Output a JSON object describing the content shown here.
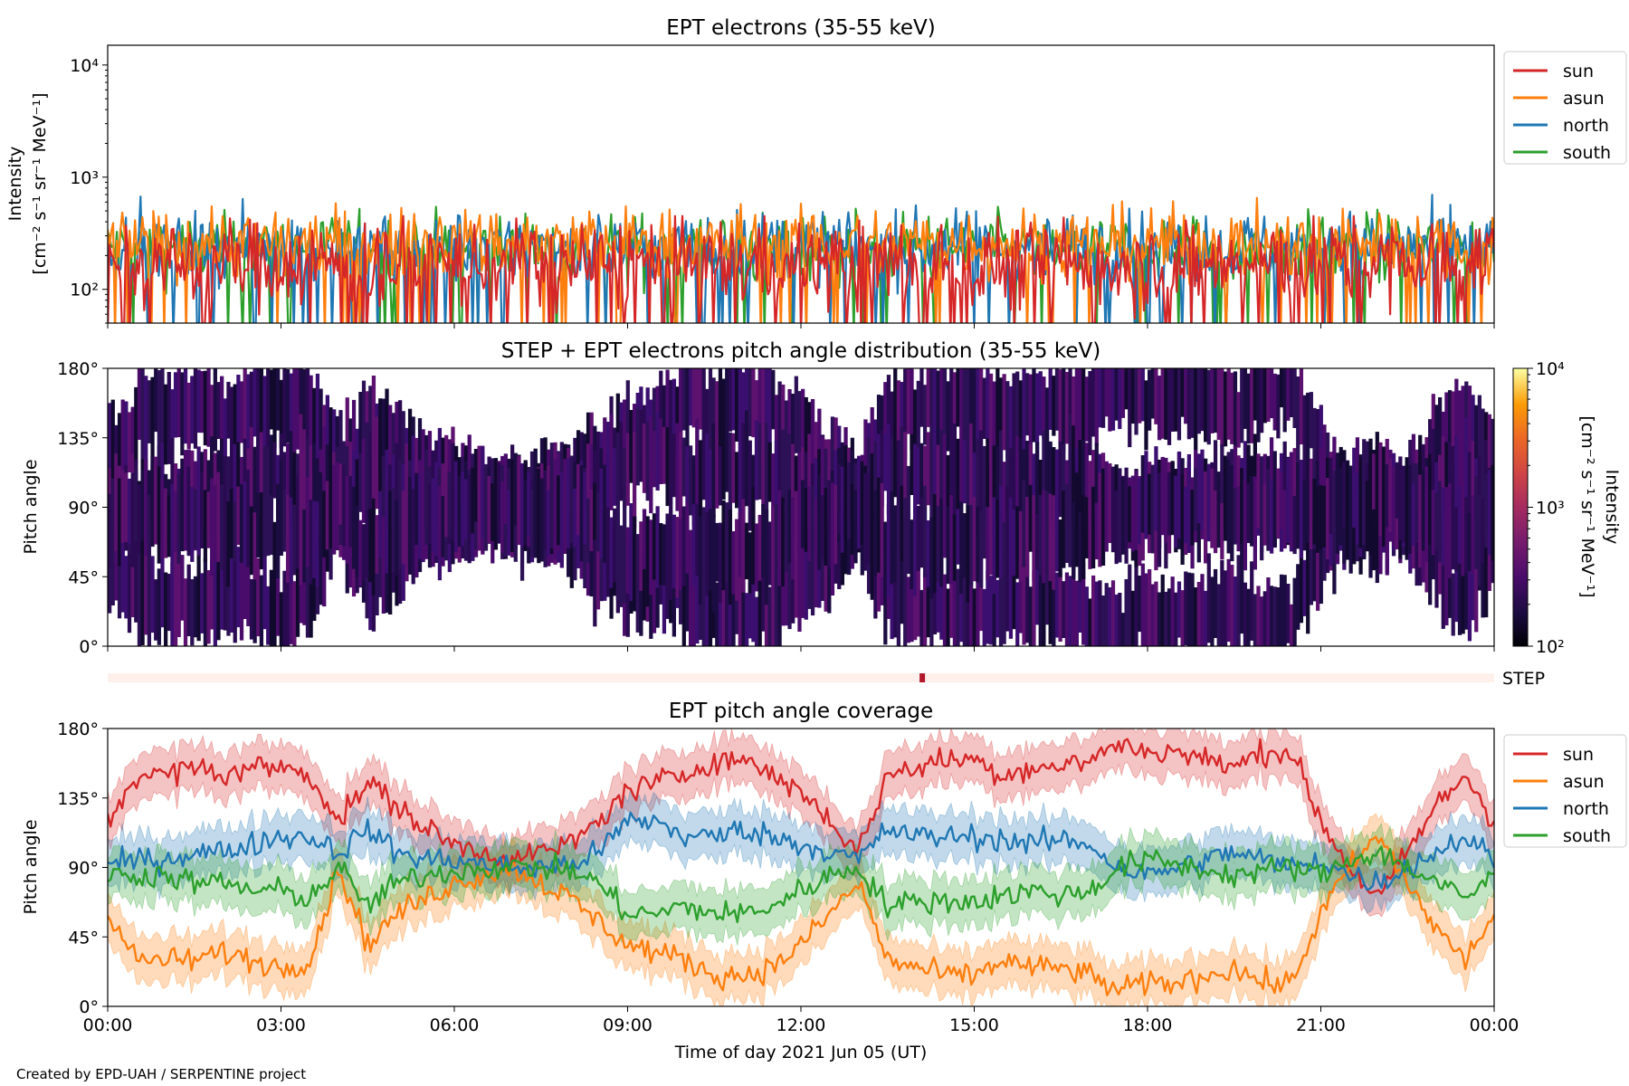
{
  "figure": {
    "credit": "Created by EPD-UAH / SERPENTINE project",
    "xlabel": "Time of day 2021 Jun 05 (UT)",
    "x_ticks": [
      "00:00",
      "03:00",
      "06:00",
      "09:00",
      "12:00",
      "15:00",
      "18:00",
      "21:00",
      "00:00"
    ]
  },
  "colors": {
    "sun": "#d62728",
    "asun": "#ff7f0e",
    "north": "#1f77b4",
    "south": "#2ca02c"
  },
  "chart_data": [
    {
      "id": "intensity",
      "type": "line",
      "title": "EPT electrons (35-55 keV)",
      "ylabel": [
        "Intensity",
        "[cm⁻² s⁻¹ sr⁻¹ MeV⁻¹]"
      ],
      "yscale": "log",
      "ylim": [
        50,
        15000
      ],
      "y_ticks": [
        {
          "value": 100,
          "label": "10²"
        },
        {
          "value": 1000,
          "label": "10³"
        },
        {
          "value": 10000,
          "label": "10⁴"
        }
      ],
      "x_range_hours": [
        0,
        24
      ],
      "legend": [
        "sun",
        "asun",
        "north",
        "south"
      ],
      "legend_position": "outside-top-right",
      "series": [
        {
          "name": "sun",
          "typical": 170,
          "spread": 0.45,
          "max": 450
        },
        {
          "name": "asun",
          "typical": 260,
          "spread": 0.35,
          "max": 800
        },
        {
          "name": "north",
          "typical": 240,
          "spread": 0.35,
          "max": 820
        },
        {
          "name": "south",
          "typical": 230,
          "spread": 0.35,
          "max": 700
        }
      ]
    },
    {
      "id": "pad",
      "type": "heatmap",
      "title": "STEP + EPT electrons pitch angle distribution (35-55 keV)",
      "ylabel": "Pitch angle",
      "ylim": [
        0,
        180
      ],
      "y_ticks": [
        "0°",
        "45°",
        "90°",
        "135°",
        "180°"
      ],
      "colorbar": {
        "label": [
          "Intensity",
          "[cm⁻² s⁻¹ sr⁻¹ MeV⁻¹]"
        ],
        "scale": "log",
        "range": [
          100,
          10000
        ],
        "ticks": [
          {
            "value": 100,
            "label": "10²"
          },
          {
            "value": 1000,
            "label": "10³"
          },
          {
            "value": 10000,
            "label": "10⁴"
          }
        ],
        "colormap": "inferno"
      },
      "step_bar": {
        "label": "STEP",
        "marker_hour": 14.1
      }
    },
    {
      "id": "coverage",
      "type": "line",
      "title": "EPT pitch angle coverage",
      "ylabel": "Pitch angle",
      "ylim": [
        0,
        180
      ],
      "y_ticks": [
        "0°",
        "45°",
        "90°",
        "135°",
        "180°"
      ],
      "x_range_hours": [
        0,
        24
      ],
      "legend": [
        "sun",
        "asun",
        "north",
        "south"
      ],
      "legend_position": "outside-top-right",
      "series": [
        {
          "name": "sun",
          "hours": [
            0,
            0.5,
            1,
            1.5,
            2,
            2.5,
            3,
            3.5,
            4,
            4.5,
            5,
            5.5,
            6,
            6.5,
            7,
            7.5,
            8,
            8.5,
            9,
            9.5,
            10,
            10.5,
            11,
            11.5,
            12,
            12.5,
            13,
            13.5,
            14,
            14.5,
            15,
            15.5,
            16,
            16.5,
            17,
            17.5,
            18,
            18.5,
            19,
            19.5,
            20,
            20.5,
            21,
            21.5,
            22,
            22.5,
            23,
            23.5,
            24
          ],
          "values": [
            120,
            150,
            150,
            155,
            150,
            155,
            155,
            150,
            120,
            145,
            130,
            115,
            105,
            100,
            95,
            100,
            105,
            120,
            140,
            145,
            150,
            160,
            160,
            150,
            140,
            120,
            100,
            150,
            155,
            160,
            160,
            150,
            155,
            155,
            160,
            170,
            165,
            165,
            160,
            155,
            165,
            165,
            120,
            90,
            70,
            100,
            130,
            150,
            120
          ]
        },
        {
          "name": "asun",
          "hours": [
            0,
            0.5,
            1,
            1.5,
            2,
            2.5,
            3,
            3.5,
            4,
            4.5,
            5,
            5.5,
            6,
            6.5,
            7,
            7.5,
            8,
            8.5,
            9,
            9.5,
            10,
            10.5,
            11,
            11.5,
            12,
            12.5,
            13,
            13.5,
            14,
            14.5,
            15,
            15.5,
            16,
            16.5,
            17,
            17.5,
            18,
            18.5,
            19,
            19.5,
            20,
            20.5,
            21,
            21.5,
            22,
            22.5,
            23,
            23.5,
            24
          ],
          "values": [
            60,
            30,
            30,
            30,
            35,
            30,
            25,
            30,
            90,
            40,
            60,
            70,
            80,
            85,
            90,
            80,
            70,
            55,
            40,
            35,
            30,
            20,
            20,
            25,
            40,
            60,
            80,
            30,
            25,
            20,
            20,
            30,
            25,
            25,
            20,
            10,
            15,
            15,
            20,
            25,
            15,
            15,
            60,
            90,
            110,
            80,
            50,
            30,
            60
          ]
        },
        {
          "name": "north",
          "hours": [
            0,
            0.5,
            1,
            1.5,
            2,
            2.5,
            3,
            3.5,
            4,
            4.5,
            5,
            5.5,
            6,
            6.5,
            7,
            7.5,
            8,
            8.5,
            9,
            9.5,
            10,
            10.5,
            11,
            11.5,
            12,
            12.5,
            13,
            13.5,
            14,
            14.5,
            15,
            15.5,
            16,
            16.5,
            17,
            17.5,
            18,
            18.5,
            19,
            19.5,
            20,
            20.5,
            21,
            21.5,
            22,
            22.5,
            23,
            23.5,
            24
          ],
          "values": [
            90,
            95,
            95,
            100,
            100,
            105,
            110,
            110,
            100,
            115,
            100,
            95,
            95,
            92,
            90,
            90,
            92,
            100,
            120,
            120,
            110,
            110,
            115,
            110,
            105,
            100,
            95,
            115,
            110,
            110,
            110,
            108,
            105,
            108,
            105,
            90,
            85,
            90,
            95,
            100,
            95,
            90,
            95,
            85,
            80,
            90,
            100,
            110,
            95
          ]
        },
        {
          "name": "south",
          "hours": [
            0,
            0.5,
            1,
            1.5,
            2,
            2.5,
            3,
            3.5,
            4,
            4.5,
            5,
            5.5,
            6,
            6.5,
            7,
            7.5,
            8,
            8.5,
            9,
            9.5,
            10,
            10.5,
            11,
            11.5,
            12,
            12.5,
            13,
            13.5,
            14,
            14.5,
            15,
            15.5,
            16,
            16.5,
            17,
            17.5,
            18,
            18.5,
            19,
            19.5,
            20,
            20.5,
            21,
            21.5,
            22,
            22.5,
            23,
            23.5,
            24
          ],
          "values": [
            85,
            85,
            85,
            80,
            80,
            75,
            75,
            70,
            90,
            65,
            80,
            85,
            88,
            90,
            90,
            90,
            88,
            80,
            60,
            60,
            65,
            60,
            60,
            65,
            75,
            85,
            90,
            65,
            68,
            68,
            68,
            72,
            75,
            72,
            75,
            90,
            95,
            92,
            88,
            85,
            88,
            90,
            85,
            95,
            100,
            90,
            80,
            70,
            85
          ]
        }
      ]
    }
  ]
}
